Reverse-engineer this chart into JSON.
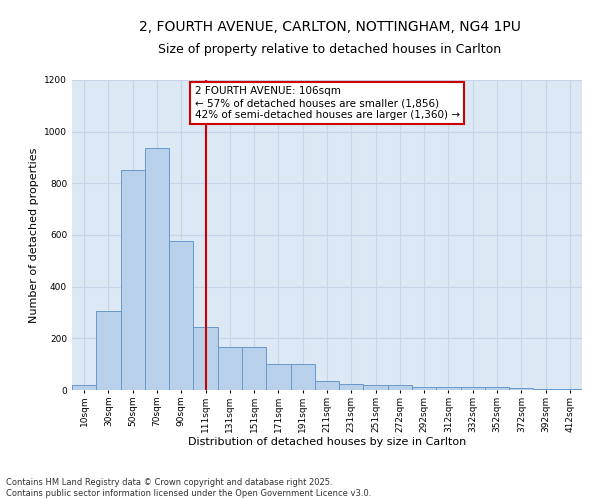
{
  "title_line1": "2, FOURTH AVENUE, CARLTON, NOTTINGHAM, NG4 1PU",
  "title_line2": "Size of property relative to detached houses in Carlton",
  "xlabel": "Distribution of detached houses by size in Carlton",
  "ylabel": "Number of detached properties",
  "bar_labels": [
    "10sqm",
    "30sqm",
    "50sqm",
    "70sqm",
    "90sqm",
    "111sqm",
    "131sqm",
    "151sqm",
    "171sqm",
    "191sqm",
    "211sqm",
    "231sqm",
    "251sqm",
    "272sqm",
    "292sqm",
    "312sqm",
    "332sqm",
    "352sqm",
    "372sqm",
    "392sqm",
    "412sqm"
  ],
  "bar_values": [
    20,
    305,
    850,
    935,
    575,
    245,
    165,
    165,
    100,
    100,
    35,
    25,
    20,
    18,
    12,
    10,
    10,
    10,
    8,
    5,
    3
  ],
  "bar_color": "#b8d0ea",
  "bar_edge_color": "#6699cc",
  "property_bin_index": 5,
  "vline_color": "#cc0000",
  "annotation_text": "2 FOURTH AVENUE: 106sqm\n← 57% of detached houses are smaller (1,856)\n42% of semi-detached houses are larger (1,360) →",
  "annotation_box_color": "#ffffff",
  "annotation_box_edge": "#cc0000",
  "ylim": [
    0,
    1200
  ],
  "yticks": [
    0,
    200,
    400,
    600,
    800,
    1000,
    1200
  ],
  "grid_color": "#c8d4e8",
  "bg_color": "#dde8f5",
  "footer_line1": "Contains HM Land Registry data © Crown copyright and database right 2025.",
  "footer_line2": "Contains public sector information licensed under the Open Government Licence v3.0.",
  "title_fontsize": 10,
  "subtitle_fontsize": 9,
  "axis_label_fontsize": 8,
  "tick_fontsize": 6.5,
  "annotation_fontsize": 7.5,
  "footer_fontsize": 6
}
